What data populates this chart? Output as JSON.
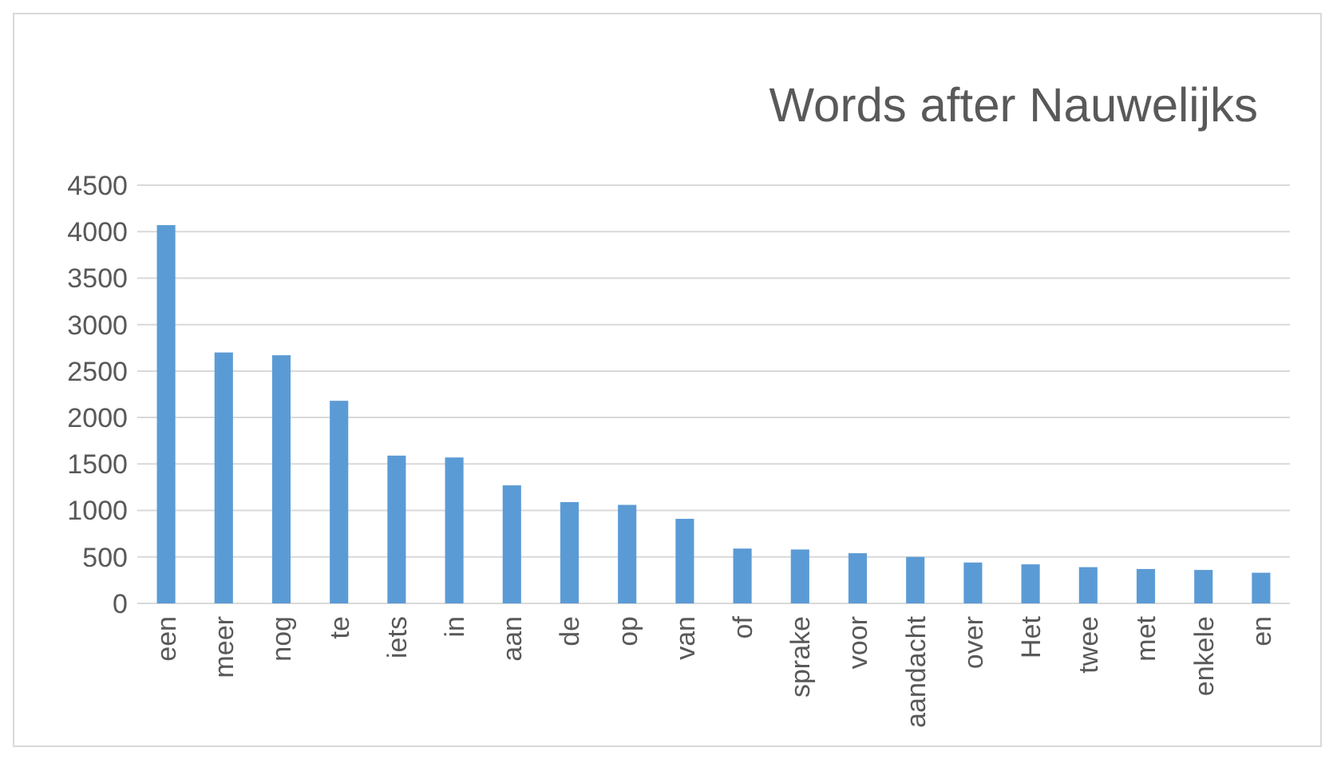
{
  "chart_data": {
    "type": "bar",
    "title": "Words after Nauwelijks",
    "categories": [
      "een",
      "meer",
      "nog",
      "te",
      "iets",
      "in",
      "aan",
      "de",
      "op",
      "van",
      "of",
      "sprake",
      "voor",
      "aandacht",
      "over",
      "Het",
      "twee",
      "met",
      "enkele",
      "en"
    ],
    "values": [
      4070,
      2700,
      2670,
      2180,
      1590,
      1570,
      1270,
      1090,
      1060,
      910,
      590,
      580,
      540,
      500,
      440,
      420,
      390,
      370,
      360,
      330
    ],
    "color": "#5b9bd5",
    "ylim": [
      0,
      4500
    ],
    "yticks": [
      0,
      500,
      1000,
      1500,
      2000,
      2500,
      3000,
      3500,
      4000,
      4500
    ],
    "grid": "y"
  }
}
